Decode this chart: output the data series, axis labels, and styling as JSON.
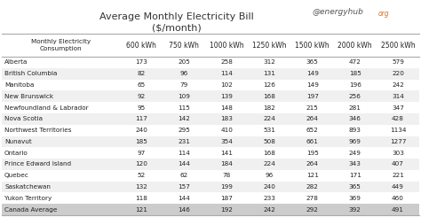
{
  "title_line1": "Average Monthly Electricity Bill",
  "title_line2": "($/month)",
  "watermark_main": "@energyhub",
  "watermark_suffix": "org",
  "col_header_label": "Monthly Electricity\nConsumption",
  "col_headers": [
    "600 kWh",
    "750 kWh",
    "1000 kWh",
    "1250 kWh",
    "1500 kWh",
    "2000 kWh",
    "2500 kWh"
  ],
  "rows": [
    [
      "Alberta",
      "173",
      "205",
      "258",
      "312",
      "365",
      "472",
      "579"
    ],
    [
      "British Columbia",
      "82",
      "96",
      "114",
      "131",
      "149",
      "185",
      "220"
    ],
    [
      "Manitoba",
      "65",
      "79",
      "102",
      "126",
      "149",
      "196",
      "242"
    ],
    [
      "New Brunswick",
      "92",
      "109",
      "139",
      "168",
      "197",
      "256",
      "314"
    ],
    [
      "Newfoundland & Labrador",
      "95",
      "115",
      "148",
      "182",
      "215",
      "281",
      "347"
    ],
    [
      "Nova Scotia",
      "117",
      "142",
      "183",
      "224",
      "264",
      "346",
      "428"
    ],
    [
      "Northwest Territories",
      "240",
      "295",
      "410",
      "531",
      "652",
      "893",
      "1134"
    ],
    [
      "Nunavut",
      "185",
      "231",
      "354",
      "508",
      "661",
      "969",
      "1277"
    ],
    [
      "Ontario",
      "97",
      "114",
      "141",
      "168",
      "195",
      "249",
      "303"
    ],
    [
      "Prince Edward Island",
      "120",
      "144",
      "184",
      "224",
      "264",
      "343",
      "407"
    ],
    [
      "Quebec",
      "52",
      "62",
      "78",
      "96",
      "121",
      "171",
      "221"
    ],
    [
      "Saskatchewan",
      "132",
      "157",
      "199",
      "240",
      "282",
      "365",
      "449"
    ],
    [
      "Yukon Territory",
      "118",
      "144",
      "187",
      "233",
      "278",
      "369",
      "460"
    ],
    [
      "Canada Average",
      "121",
      "146",
      "192",
      "242",
      "292",
      "392",
      "491"
    ]
  ],
  "bg_white": "#ffffff",
  "bg_light": "#f0f0f0",
  "bg_mid": "#e0e0e0",
  "bg_last": "#cccccc",
  "line_color": "#aaaaaa",
  "text_color": "#222222",
  "watermark_color": "#555555",
  "watermark_suffix_color": "#e07020",
  "title_color": "#333333",
  "fig_width": 4.74,
  "fig_height": 2.45,
  "dpi": 100
}
